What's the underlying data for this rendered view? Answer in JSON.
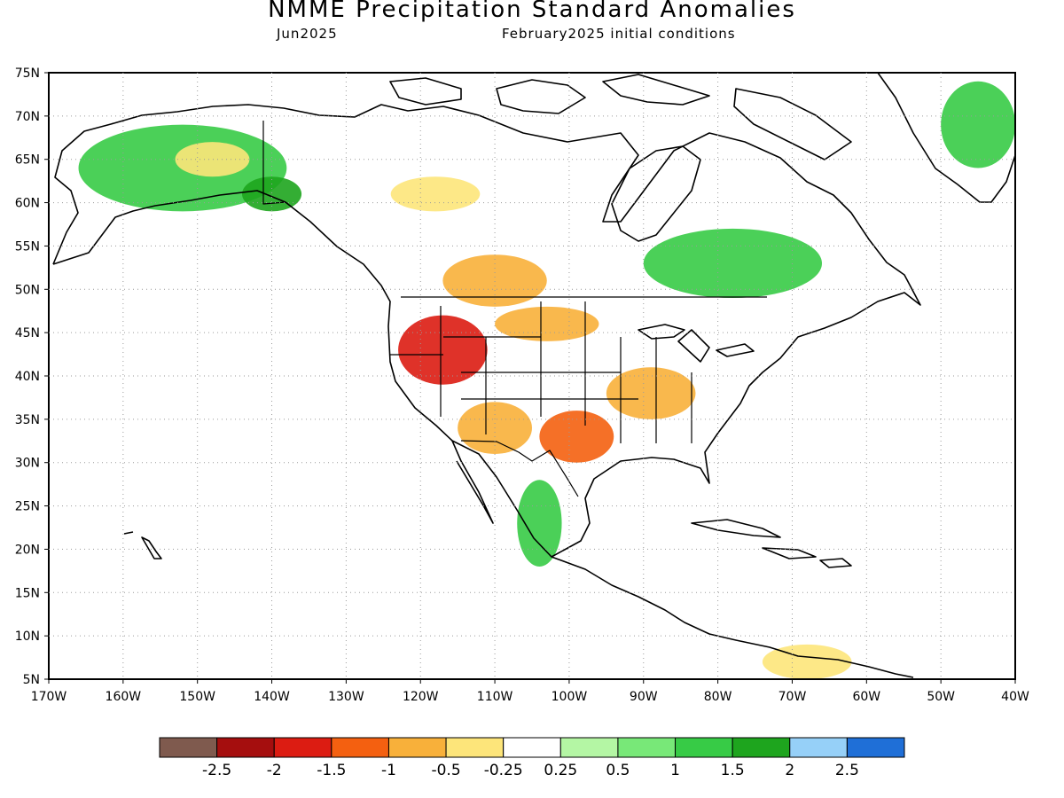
{
  "title": "NMME Precipitation Standard Anomalies",
  "subtitle_left": "Jun2025",
  "subtitle_right": "February2025 initial conditions",
  "axes": {
    "lon_labels": [
      "170W",
      "160W",
      "150W",
      "140W",
      "130W",
      "120W",
      "110W",
      "100W",
      "90W",
      "80W",
      "70W",
      "60W",
      "50W",
      "40W"
    ],
    "lat_labels": [
      "5N",
      "10N",
      "15N",
      "20N",
      "25N",
      "30N",
      "35N",
      "40N",
      "45N",
      "50N",
      "55N",
      "60N",
      "65N",
      "70N",
      "75N"
    ],
    "lon_range": [
      -170,
      -40
    ],
    "lat_range": [
      5,
      75
    ],
    "grid": "dotted"
  },
  "legend": {
    "colors": [
      "#7f5a4e",
      "#a50e0e",
      "#dc1c12",
      "#f46010",
      "#f8b03a",
      "#fde57a",
      "#ffffff",
      "#b4f6a4",
      "#78e878",
      "#37cb46",
      "#1ea51e",
      "#96d0f8",
      "#1f6fd7"
    ],
    "labels": [
      "-2.5",
      "-2",
      "-1.5",
      "-1",
      "-0.5",
      "-0.25",
      "0.25",
      "0.5",
      "1",
      "1.5",
      "2",
      "2.5"
    ]
  },
  "anomaly_regions": [
    {
      "name": "Alaska and Yukon wet anomaly",
      "level": 1,
      "lon": -152,
      "lat": 64,
      "rlon": 14,
      "rlat": 5
    },
    {
      "name": "Western Alaska dry spot",
      "level": -0.5,
      "lon": -148,
      "lat": 65,
      "rlon": 5,
      "rlat": 2
    },
    {
      "name": "Southeast Alaska wet",
      "level": 1.5,
      "lon": -140,
      "lat": 61,
      "rlon": 4,
      "rlat": 2
    },
    {
      "name": "Northwest Territories dry",
      "level": -0.5,
      "lon": -118,
      "lat": 61,
      "rlon": 6,
      "rlat": 2
    },
    {
      "name": "Canadian Prairies dry",
      "level": -1,
      "lon": -110,
      "lat": 51,
      "rlon": 7,
      "rlat": 3
    },
    {
      "name": "Pacific Northwest and Great Basin dry",
      "level": -2,
      "lon": -117,
      "lat": 43,
      "rlon": 6,
      "rlat": 4
    },
    {
      "name": "Northern Plains dry",
      "level": -1,
      "lon": -103,
      "lat": 46,
      "rlon": 7,
      "rlat": 2
    },
    {
      "name": "Southern Plains dry",
      "level": -1.5,
      "lon": -99,
      "lat": 33,
      "rlon": 5,
      "rlat": 3
    },
    {
      "name": "Mississippi Valley dry",
      "level": -1,
      "lon": -89,
      "lat": 38,
      "rlon": 6,
      "rlat": 3
    },
    {
      "name": "Southwest dry",
      "level": -1,
      "lon": -110,
      "lat": 34,
      "rlon": 5,
      "rlat": 3
    },
    {
      "name": "Eastern Canada wet",
      "level": 1,
      "lon": -78,
      "lat": 53,
      "rlon": 12,
      "rlat": 4
    },
    {
      "name": "Greenland wet",
      "level": 1,
      "lon": -45,
      "lat": 69,
      "rlon": 5,
      "rlat": 5
    },
    {
      "name": "Western Mexico wet",
      "level": 1,
      "lon": -104,
      "lat": 23,
      "rlon": 3,
      "rlat": 5
    },
    {
      "name": "Northern South America dry",
      "level": -0.5,
      "lon": -68,
      "lat": 7,
      "rlon": 6,
      "rlat": 2
    }
  ]
}
